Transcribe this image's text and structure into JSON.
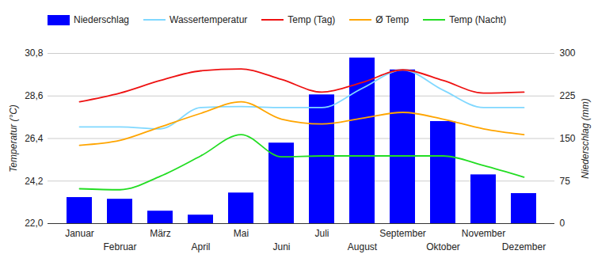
{
  "chart_data": {
    "type": "bar",
    "categories": [
      "Januar",
      "Februar",
      "März",
      "April",
      "Mai",
      "Juni",
      "Juli",
      "August",
      "September",
      "Oktober",
      "November",
      "Dezember"
    ],
    "series": [
      {
        "name": "Niederschlag",
        "type": "bar",
        "axis": "y2",
        "color": "#0000ff",
        "values": [
          46,
          43,
          22,
          15,
          54,
          142,
          227,
          292,
          271,
          180,
          86,
          53
        ]
      },
      {
        "name": "Wassertemperatur",
        "type": "line",
        "color": "#80d8ff",
        "values": [
          27.0,
          27.0,
          26.9,
          28.0,
          28.05,
          28.0,
          28.0,
          29.0,
          29.95,
          28.9,
          28.0,
          28.0
        ]
      },
      {
        "name": "Temp (Tag)",
        "type": "line",
        "color": "#ee1111",
        "values": [
          28.3,
          28.75,
          29.4,
          29.9,
          30.0,
          29.45,
          28.8,
          29.3,
          29.95,
          29.4,
          28.75,
          28.8
        ]
      },
      {
        "name": "Ø Temp",
        "type": "line",
        "color": "#ffa500",
        "values": [
          26.05,
          26.3,
          27.0,
          27.7,
          28.3,
          27.4,
          27.15,
          27.45,
          27.75,
          27.4,
          26.9,
          26.6
        ]
      },
      {
        "name": "Temp (Nacht)",
        "type": "line",
        "color": "#22dd22",
        "values": [
          23.8,
          23.75,
          24.45,
          25.5,
          26.6,
          25.45,
          25.5,
          25.5,
          25.5,
          25.5,
          25.0,
          24.4
        ]
      }
    ],
    "ylabel": "Temperatur (°C)",
    "y2label": "Niederschlag (mm)",
    "ylim": [
      22,
      30.8
    ],
    "yticks": [
      {
        "value": 22,
        "label": "22,0"
      },
      {
        "value": 24.2,
        "label": "24,2"
      },
      {
        "value": 26.4,
        "label": "26,4"
      },
      {
        "value": 28.6,
        "label": "28,6"
      },
      {
        "value": 30.8,
        "label": "30,8"
      }
    ],
    "y2lim": [
      0,
      300
    ],
    "y2ticks": [
      0,
      75,
      150,
      225,
      300
    ],
    "grid": true,
    "legend": "top"
  }
}
